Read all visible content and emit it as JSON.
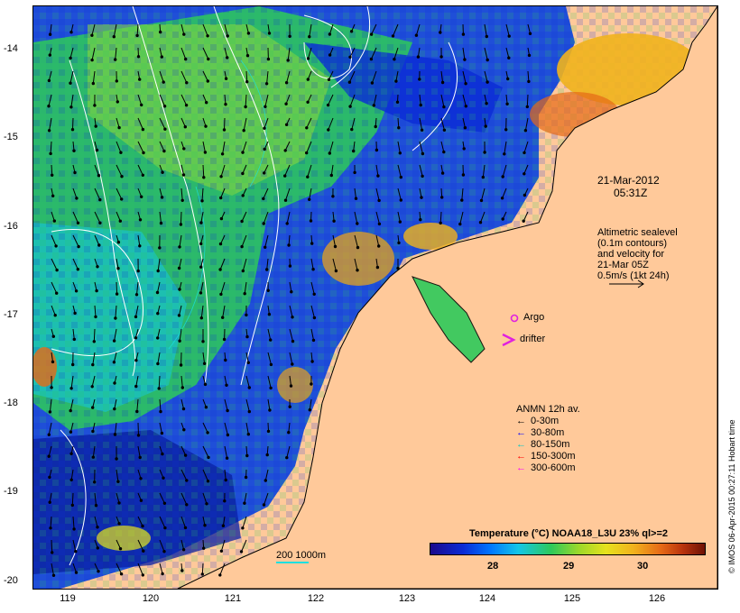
{
  "axes": {
    "y_ticks": [
      "-14",
      "-15",
      "-16",
      "-17",
      "-18",
      "-19",
      "-20"
    ],
    "x_ticks": [
      "119",
      "120",
      "121",
      "122",
      "123",
      "124",
      "125",
      "126"
    ]
  },
  "annotations": {
    "date_line1": "21-Mar-2012",
    "date_line2": "05:31Z",
    "sealevel_lines": [
      "Altimetric sealevel",
      "(0.1m contours)",
      "and velocity for",
      "21-Mar 05Z",
      "0.5m/s (1kt 24h)"
    ],
    "argo_label": "Argo",
    "drifter_label": "drifter"
  },
  "legend": {
    "title": "ANMN 12h av.",
    "items": [
      {
        "label": "0-30m",
        "color": "#000000"
      },
      {
        "label": "30-80m",
        "color": "#0000ff"
      },
      {
        "label": "80-150m",
        "color": "#00e0e0"
      },
      {
        "label": "150-300m",
        "color": "#ff0000"
      },
      {
        "label": "300-600m",
        "color": "#ff00ff"
      }
    ]
  },
  "colorbar": {
    "title": "Temperature (°C) NOAA18_L3U 23% ql>=2",
    "labels": [
      "28",
      "29",
      "30"
    ]
  },
  "scale": {
    "label": "200  1000m"
  },
  "credit": "© IMOS 06-Apr-2015 00:27:11 Hobart time",
  "colors": {
    "land": "#ffc99a",
    "ocean_deep": "#0a2bd6",
    "ocean_mid": "#2ec95a",
    "warm": "#f1b21d",
    "contour": "#ffffff",
    "isobath": "#19e0e0",
    "argo": "#e020e0",
    "drifter": "#e020e0"
  }
}
